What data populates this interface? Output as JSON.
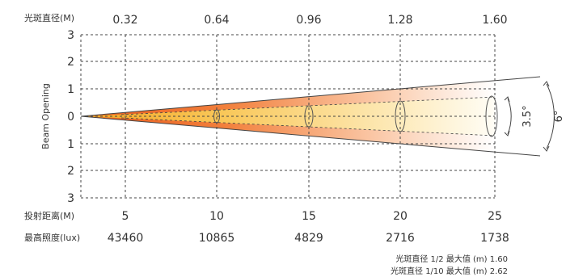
{
  "chart_data": {
    "type": "beam-diagram",
    "top_axis_label": "光斑直径(M)",
    "spot_diameters": [
      "0.32",
      "0.64",
      "0.96",
      "1.28",
      "1.60"
    ],
    "y_label": "Beam Opening",
    "y_ticks": [
      "3",
      "2",
      "1",
      "0",
      "1",
      "2",
      "3"
    ],
    "distance_label": "投射距离(M)",
    "distances": [
      "5",
      "10",
      "15",
      "20",
      "25"
    ],
    "lux_label": "最高照度(lux)",
    "lux": [
      "43460",
      "10865",
      "4829",
      "2716",
      "1738"
    ],
    "inner_angle": "3.5°",
    "outer_angle": "6°",
    "grid": true,
    "colors": {
      "core": "#f5b830",
      "outer": "#f07a30",
      "grid": "#444444",
      "fade": "#ffffff"
    }
  },
  "footer": {
    "line1": "光斑直径 1/2 最大值 (m) 1.60",
    "line2": "光斑直径 1/10 最大值 (m) 2.62"
  }
}
